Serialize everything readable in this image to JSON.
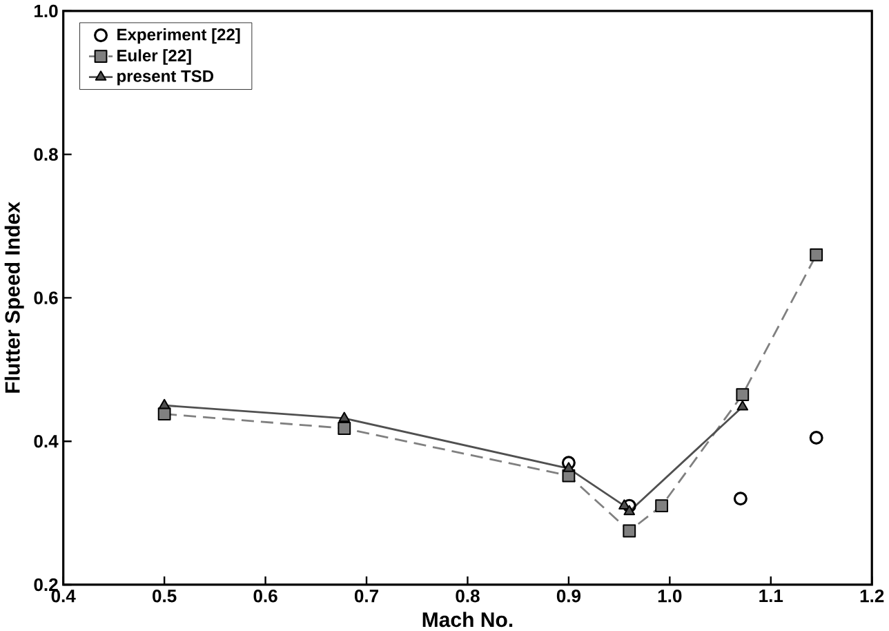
{
  "chart_data": {
    "type": "line",
    "xlabel": "Mach No.",
    "ylabel": "Flutter Speed Index",
    "xlim": [
      0.4,
      1.2
    ],
    "xticks": [
      {
        "value": 0.4,
        "label": "0.4"
      },
      {
        "value": 0.5,
        "label": "0.5"
      },
      {
        "value": 0.6,
        "label": "0.6"
      },
      {
        "value": 0.7,
        "label": "0.7"
      },
      {
        "value": 0.8,
        "label": "0.8"
      },
      {
        "value": 0.9,
        "label": "0.9"
      },
      {
        "value": 1.0,
        "label": "1.0"
      },
      {
        "value": 1.1,
        "label": "1.1"
      },
      {
        "value": 1.2,
        "label": "1.2"
      }
    ],
    "ylim": [
      0.2,
      1.0
    ],
    "yticks": [
      {
        "value": 0.2,
        "label": "0.2"
      },
      {
        "value": 0.4,
        "label": "0.4"
      },
      {
        "value": 0.6,
        "label": "0.6"
      },
      {
        "value": 0.8,
        "label": "0.8"
      },
      {
        "value": 1.0,
        "label": "1.0"
      }
    ],
    "legend": "top left",
    "grid": false,
    "series": [
      {
        "name": "Experiment [22]",
        "type": "scatter",
        "marker": "circle",
        "color": "#000000",
        "x": [
          0.9,
          0.96,
          1.07,
          1.145
        ],
        "values": [
          0.37,
          0.31,
          0.32,
          0.405
        ]
      },
      {
        "name": "Euler [22]",
        "marker": "square",
        "line_style": "dashed",
        "color": "#808080",
        "x": [
          0.5,
          0.678,
          0.9,
          0.96,
          0.992,
          1.072,
          1.145
        ],
        "values": [
          0.438,
          0.418,
          0.352,
          0.275,
          0.31,
          0.465,
          0.66
        ]
      },
      {
        "name": "present TSD",
        "marker": "triangle",
        "line_style": "solid",
        "color": "#505050",
        "x": [
          0.5,
          0.678,
          0.9,
          0.955,
          0.96,
          1.072
        ],
        "values": [
          0.45,
          0.432,
          0.362,
          0.31,
          0.302,
          0.448
        ]
      }
    ]
  }
}
